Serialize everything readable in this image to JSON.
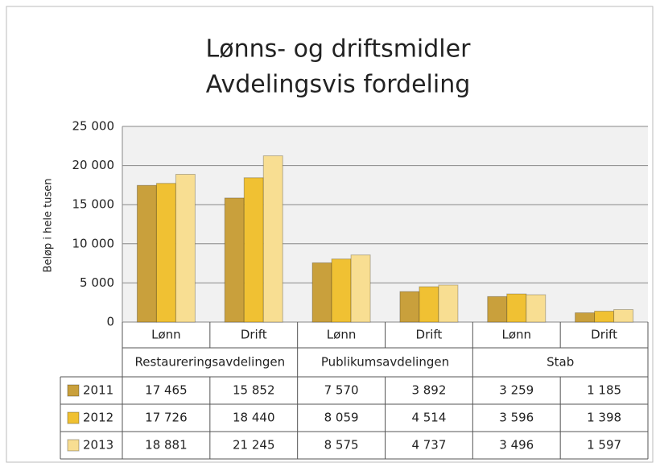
{
  "chart_data": {
    "type": "bar",
    "title": [
      "Lønns- og driftsmidler",
      "Avdelingsvis fordeling"
    ],
    "y_label": "Beløp i hele tusen",
    "categories": [
      "Lønn",
      "Drift",
      "Lønn",
      "Drift",
      "Lønn",
      "Drift"
    ],
    "groups": [
      "Restaureringsavdelingen",
      "Publikumsavdelingen",
      "Stab"
    ],
    "series": [
      {
        "name": "2011",
        "color": "#c9a03c",
        "values": [
          17465,
          15852,
          7570,
          3892,
          3259,
          1185
        ],
        "value_labels": [
          "17 465",
          "15 852",
          "7 570",
          "3 892",
          "3 259",
          "1 185"
        ]
      },
      {
        "name": "2012",
        "color": "#f0c133",
        "values": [
          17726,
          18440,
          8059,
          4514,
          3596,
          1398
        ],
        "value_labels": [
          "17 726",
          "18 440",
          "8 059",
          "4 514",
          "3 596",
          "1 398"
        ]
      },
      {
        "name": "2013",
        "color": "#f8de92",
        "values": [
          18881,
          21245,
          8575,
          4737,
          3496,
          1597
        ],
        "value_labels": [
          "18 881",
          "21 245",
          "8 575",
          "4 737",
          "3 496",
          "1 597"
        ]
      }
    ],
    "ylim": [
      0,
      25000
    ],
    "yticks": [
      0,
      {
        "value": 5000,
        "label": "5 000"
      },
      {
        "value": 10000,
        "label": "10 000"
      },
      {
        "value": 15000,
        "label": "15 000"
      },
      {
        "value": 20000,
        "label": "20 000"
      },
      {
        "value": 25000,
        "label": "25 000"
      }
    ],
    "grid": true
  }
}
